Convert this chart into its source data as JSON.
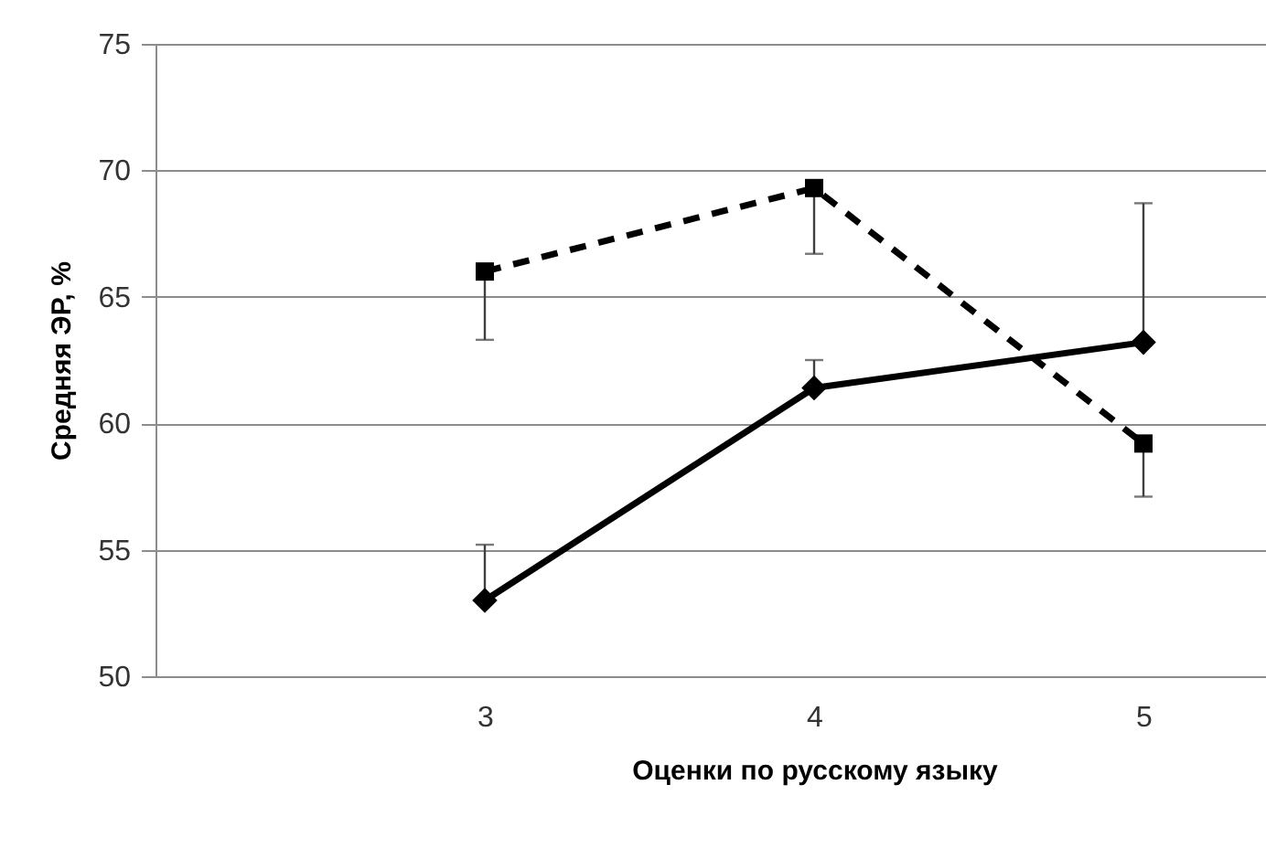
{
  "chart_data": {
    "type": "line",
    "xlabel": "Оценки по русскому языку",
    "ylabel": "Средняя ЭР, %",
    "categories": [
      "3",
      "4",
      "5"
    ],
    "series": [
      {
        "color": "#000000",
        "marker": "square",
        "line_style": "dashed",
        "values": [
          66.0,
          69.3,
          59.2
        ],
        "errors": [
          [
            63.3,
            66.0
          ],
          [
            66.7,
            69.3
          ],
          [
            57.1,
            59.2
          ]
        ]
      },
      {
        "color": "#000000",
        "marker": "diamond",
        "line_style": "solid",
        "values": [
          53.0,
          61.4,
          63.2
        ],
        "errors": [
          [
            53.0,
            55.2
          ],
          [
            61.4,
            62.5
          ],
          [
            63.2,
            68.7
          ]
        ]
      }
    ],
    "ylim": [
      50,
      75
    ],
    "yticks": [
      50,
      55,
      60,
      65,
      70,
      75
    ],
    "grid": "y"
  }
}
